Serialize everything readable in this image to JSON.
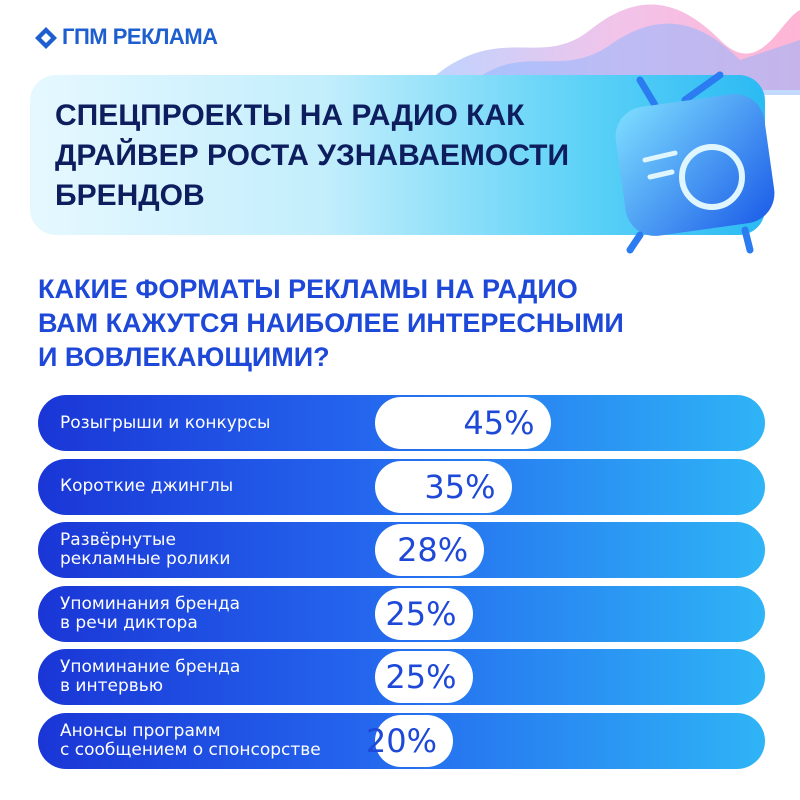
{
  "brand": "ГПМ РЕКЛАМА",
  "chart_data": {
    "type": "bar",
    "title": "СПЕЦПРОЕКТЫ НА РАДИО КАК\nДРАЙВЕР РОСТА УЗНАВАЕМОСТИ\nБРЕНДОВ",
    "subtitle": "КАКИЕ ФОРМАТЫ РЕКЛАМЫ НА РАДИО\nВАМ КАЖУТСЯ НАИБОЛЕЕ ИНТЕРЕСНЫМИ\nИ ВОВЛЕКАЮЩИМИ?",
    "categories": [
      "Розыгрыши и конкурсы",
      "Короткие джинглы",
      "Развёрнутые\nрекламные ролики",
      "Упоминания бренда\nв речи диктора",
      "Упоминание бренда\nв интервью",
      "Анонсы программ\nс сообщением о спонсорстве"
    ],
    "values": [
      45,
      35,
      28,
      25,
      25,
      20
    ],
    "value_labels": [
      "45%",
      "35%",
      "28%",
      "25%",
      "25%",
      "20%"
    ],
    "color": "#ffffff"
  }
}
